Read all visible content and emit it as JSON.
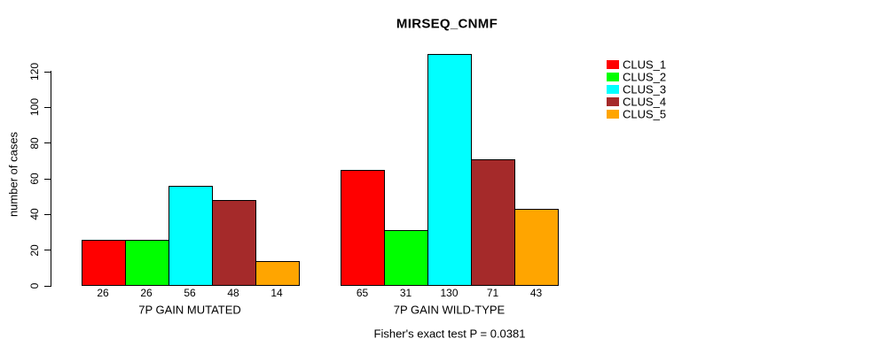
{
  "title": "MIRSEQ_CNMF",
  "chart_data": {
    "type": "bar",
    "title": "MIRSEQ_CNMF",
    "ylabel": "number of cases",
    "xlabel": "",
    "ylim": [
      0,
      130
    ],
    "yticks": [
      0,
      20,
      40,
      60,
      80,
      100,
      120
    ],
    "grid": false,
    "legend_position": "top-right",
    "bar_values_labeled": true,
    "categories": [
      "7P GAIN MUTATED",
      "7P GAIN WILD-TYPE"
    ],
    "series": [
      {
        "name": "CLUS_1",
        "color": "#ff0000",
        "values": [
          26,
          65
        ]
      },
      {
        "name": "CLUS_2",
        "color": "#00ff00",
        "values": [
          26,
          31
        ]
      },
      {
        "name": "CLUS_3",
        "color": "#00ffff",
        "values": [
          56,
          130
        ]
      },
      {
        "name": "CLUS_4",
        "color": "#a52a2a",
        "values": [
          48,
          71
        ]
      },
      {
        "name": "CLUS_5",
        "color": "#ffa500",
        "values": [
          14,
          43
        ]
      }
    ],
    "annotation": "Fisher's exact test P = 0.0381"
  }
}
